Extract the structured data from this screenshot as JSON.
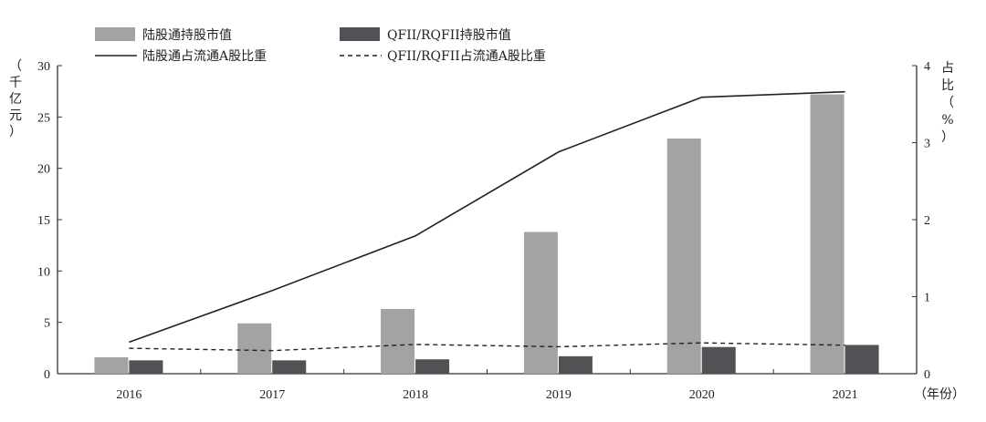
{
  "chart_data": {
    "type": "bar",
    "categories": [
      "2016",
      "2017",
      "2018",
      "2019",
      "2020",
      "2021"
    ],
    "x_unit": "（年份）",
    "y_left": {
      "label": "（千亿元）",
      "ylim": [
        0,
        30
      ],
      "ticks": [
        "0",
        "5",
        "10",
        "15",
        "20",
        "25",
        "30"
      ]
    },
    "y_right": {
      "label": "占比（%）",
      "ylim": [
        0,
        4
      ],
      "ticks": [
        "0",
        "1",
        "2",
        "3",
        "4"
      ]
    },
    "series": [
      {
        "name": "陆股通持股市值",
        "type": "bar",
        "axis": "left",
        "color": "#a3a3a6",
        "values": [
          1.6,
          4.9,
          6.3,
          13.8,
          22.9,
          27.2
        ]
      },
      {
        "name": "QFII/RQFII持股市值",
        "type": "bar",
        "axis": "left",
        "color": "#525155",
        "values": [
          1.3,
          1.3,
          1.4,
          1.7,
          2.6,
          2.8
        ]
      },
      {
        "name": "陆股通占流通A股比重",
        "type": "line",
        "axis": "right",
        "style": "solid",
        "color": "#222222",
        "values": [
          0.41,
          1.08,
          1.79,
          2.88,
          3.59,
          3.66
        ]
      },
      {
        "name": "QFII/RQFII占流通A股比重",
        "type": "line",
        "axis": "right",
        "style": "dashed",
        "color": "#222222",
        "values": [
          0.33,
          0.3,
          0.38,
          0.35,
          0.4,
          0.37
        ]
      }
    ],
    "legend_position": "top",
    "grid": false
  }
}
